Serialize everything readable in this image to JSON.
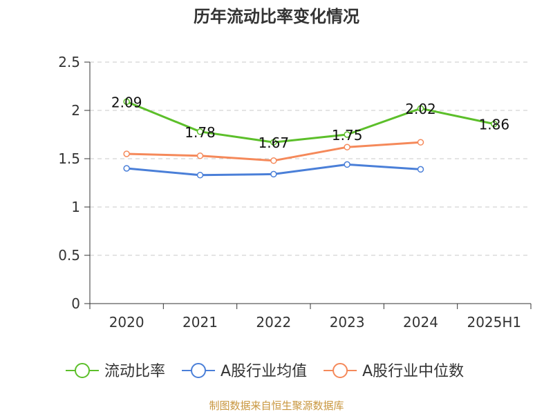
{
  "chart_data": {
    "type": "line",
    "title": "历年流动比率变化情况",
    "categories": [
      "2020",
      "2021",
      "2022",
      "2023",
      "2024",
      "2025H1"
    ],
    "ylim": [
      0,
      2.5
    ],
    "yticks": [
      "0",
      "0.5",
      "1",
      "1.5",
      "2",
      "2.5"
    ],
    "grid": true,
    "legend_position": "bottom",
    "series": [
      {
        "name": "流动比率",
        "color": "#5cbf2a",
        "values": [
          2.09,
          1.78,
          1.67,
          1.75,
          2.02,
          1.86
        ],
        "labels": [
          "2.09",
          "1.78",
          "1.67",
          "1.75",
          "2.02",
          "1.86"
        ]
      },
      {
        "name": "A股行业均值",
        "color": "#4a7fd8",
        "values": [
          1.4,
          1.33,
          1.34,
          1.44,
          1.39,
          null
        ]
      },
      {
        "name": "A股行业中位数",
        "color": "#f5895a",
        "values": [
          1.55,
          1.53,
          1.48,
          1.62,
          1.67,
          null
        ]
      }
    ]
  },
  "source": "制图数据来自恒生聚源数据库"
}
